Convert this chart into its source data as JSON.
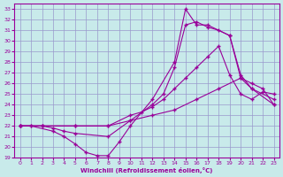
{
  "xlabel": "Windchill (Refroidissement éolien,°C)",
  "xlim": [
    -0.5,
    23.5
  ],
  "ylim": [
    19,
    33.5
  ],
  "yticks": [
    19,
    20,
    21,
    22,
    23,
    24,
    25,
    26,
    27,
    28,
    29,
    30,
    31,
    32,
    33
  ],
  "xticks": [
    0,
    1,
    2,
    3,
    4,
    5,
    6,
    7,
    8,
    9,
    10,
    11,
    12,
    13,
    14,
    15,
    16,
    17,
    18,
    19,
    20,
    21,
    22,
    23
  ],
  "bg_color": "#c8eaea",
  "line_color": "#990099",
  "grid_color": "#9999cc",
  "lines": [
    {
      "x": [
        0,
        1,
        3,
        4,
        5,
        6,
        7,
        8,
        9,
        10,
        12,
        14,
        15,
        16,
        17,
        19,
        20,
        21,
        23
      ],
      "y": [
        22,
        22,
        21.5,
        21.0,
        20.3,
        19.5,
        19.2,
        19.2,
        20.5,
        22.0,
        24.5,
        28.0,
        33.0,
        31.5,
        31.5,
        30.5,
        26.8,
        25.5,
        24.0
      ]
    },
    {
      "x": [
        0,
        1,
        2,
        3,
        4,
        5,
        8,
        10,
        12,
        13,
        14,
        15,
        16,
        17,
        18,
        19,
        20,
        21,
        23
      ],
      "y": [
        22,
        22,
        22,
        21.8,
        21.5,
        21.3,
        21.0,
        22.5,
        24.0,
        25.0,
        27.5,
        31.5,
        31.8,
        31.3,
        31.0,
        30.5,
        26.5,
        25.5,
        24.5
      ]
    },
    {
      "x": [
        0,
        2,
        5,
        8,
        10,
        11,
        12,
        13,
        14,
        15,
        16,
        17,
        18,
        19,
        20,
        21,
        22,
        23
      ],
      "y": [
        22,
        22,
        22,
        22,
        23.0,
        23.3,
        23.8,
        24.5,
        25.5,
        26.5,
        27.5,
        28.5,
        29.5,
        26.8,
        25.0,
        24.5,
        25.2,
        25.0
      ]
    },
    {
      "x": [
        0,
        2,
        5,
        8,
        10,
        12,
        14,
        16,
        18,
        20,
        21,
        22,
        23
      ],
      "y": [
        22,
        22,
        22,
        22,
        22.5,
        23.0,
        23.5,
        24.5,
        25.5,
        26.5,
        26.0,
        25.5,
        24.0
      ]
    }
  ]
}
